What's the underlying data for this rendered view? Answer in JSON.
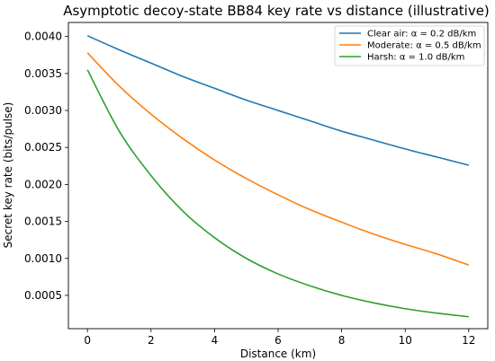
{
  "chart_data": {
    "type": "line",
    "title": "Asymptotic decoy-state BB84 key rate vs distance (illustrative)",
    "xlabel": "Distance (km)",
    "ylabel": "Secret key rate (bits/pulse)",
    "xlim": [
      -0.6,
      12.6
    ],
    "ylim": [
      5e-05,
      0.00419
    ],
    "xticks": [
      0,
      2,
      4,
      6,
      8,
      10,
      12
    ],
    "xtick_labels": [
      "0",
      "2",
      "4",
      "6",
      "8",
      "10",
      "12"
    ],
    "yticks": [
      0.0005,
      0.001,
      0.0015,
      0.002,
      0.0025,
      0.003,
      0.0035,
      0.004
    ],
    "ytick_labels": [
      "0.0005",
      "0.0010",
      "0.0015",
      "0.0020",
      "0.0025",
      "0.0030",
      "0.0035",
      "0.0040"
    ],
    "grid": false,
    "legend_position": "top-right",
    "x": [
      0,
      1,
      2,
      3,
      4,
      5,
      6,
      7,
      8,
      9,
      10,
      11,
      12
    ],
    "series": [
      {
        "name": "Clear air: α = 0.2 dB/km",
        "color": "#1f77b4",
        "values": [
          0.00401,
          0.00382,
          0.00364,
          0.00346,
          0.0033,
          0.00314,
          0.003,
          0.00286,
          0.00272,
          0.0026,
          0.00248,
          0.00237,
          0.00226
        ]
      },
      {
        "name": "Moderate: α = 0.5 dB/km",
        "color": "#ff7f0e",
        "values": [
          0.00378,
          0.00333,
          0.00295,
          0.00262,
          0.00233,
          0.00208,
          0.00186,
          0.00166,
          0.00149,
          0.00133,
          0.00119,
          0.00106,
          0.00091
        ]
      },
      {
        "name": "Harsh: α = 1.0 dB/km",
        "color": "#2ca02c",
        "values": [
          0.00355,
          0.00272,
          0.00212,
          0.00164,
          0.00128,
          0.001,
          0.00079,
          0.00063,
          0.0005,
          0.0004,
          0.00032,
          0.00026,
          0.00021
        ]
      }
    ]
  }
}
